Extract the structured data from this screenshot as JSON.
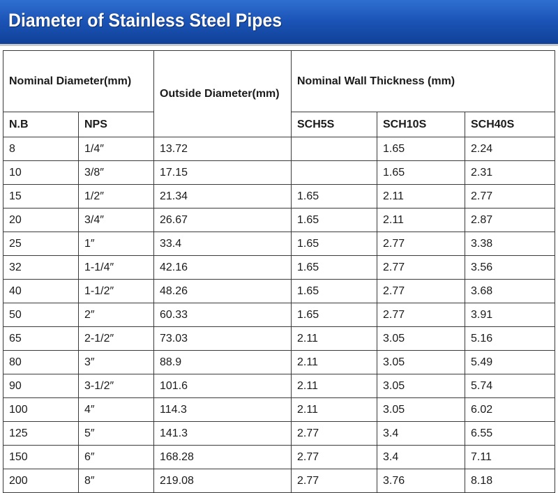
{
  "banner": {
    "title": "Diameter of Stainless Steel Pipes"
  },
  "table": {
    "header": {
      "nominal_diameter": "Nominal Diameter(mm)",
      "outside_diameter": "Outside Diameter(mm)",
      "wall_thickness": "Nominal Wall Thickness (mm)",
      "nb": "N.B",
      "nps": "NPS",
      "sch5s": "SCH5S",
      "sch10s": "SCH10S",
      "sch40s": "SCH40S"
    },
    "rows": [
      {
        "nb": "8",
        "nps": "1/4″",
        "od": "13.72",
        "sch5s": "",
        "sch10s": "1.65",
        "sch40s": "2.24"
      },
      {
        "nb": "10",
        "nps": "3/8″",
        "od": "17.15",
        "sch5s": "",
        "sch10s": "1.65",
        "sch40s": "2.31"
      },
      {
        "nb": "15",
        "nps": "1/2″",
        "od": "21.34",
        "sch5s": "1.65",
        "sch10s": "2.11",
        "sch40s": "2.77"
      },
      {
        "nb": "20",
        "nps": "3/4″",
        "od": "26.67",
        "sch5s": "1.65",
        "sch10s": "2.11",
        "sch40s": "2.87"
      },
      {
        "nb": "25",
        "nps": "1″",
        "od": "33.4",
        "sch5s": "1.65",
        "sch10s": "2.77",
        "sch40s": "3.38"
      },
      {
        "nb": "32",
        "nps": "1-1/4″",
        "od": "42.16",
        "sch5s": "1.65",
        "sch10s": "2.77",
        "sch40s": "3.56"
      },
      {
        "nb": "40",
        "nps": "1-1/2″",
        "od": "48.26",
        "sch5s": "1.65",
        "sch10s": "2.77",
        "sch40s": "3.68"
      },
      {
        "nb": "50",
        "nps": "2″",
        "od": "60.33",
        "sch5s": "1.65",
        "sch10s": "2.77",
        "sch40s": "3.91"
      },
      {
        "nb": "65",
        "nps": "2-1/2″",
        "od": "73.03",
        "sch5s": "2.11",
        "sch10s": "3.05",
        "sch40s": "5.16"
      },
      {
        "nb": "80",
        "nps": "3″",
        "od": "88.9",
        "sch5s": "2.11",
        "sch10s": "3.05",
        "sch40s": "5.49"
      },
      {
        "nb": "90",
        "nps": "3-1/2″",
        "od": "101.6",
        "sch5s": "2.11",
        "sch10s": "3.05",
        "sch40s": "5.74"
      },
      {
        "nb": "100",
        "nps": "4″",
        "od": "114.3",
        "sch5s": "2.11",
        "sch10s": "3.05",
        "sch40s": "6.02"
      },
      {
        "nb": "125",
        "nps": "5″",
        "od": "141.3",
        "sch5s": "2.77",
        "sch10s": "3.4",
        "sch40s": "6.55"
      },
      {
        "nb": "150",
        "nps": "6″",
        "od": "168.28",
        "sch5s": "2.77",
        "sch10s": "3.4",
        "sch40s": "7.11"
      },
      {
        "nb": "200",
        "nps": "8″",
        "od": "219.08",
        "sch5s": "2.77",
        "sch10s": "3.76",
        "sch40s": "8.18"
      }
    ]
  },
  "colors": {
    "banner_top": "#2f6fd0",
    "banner_bottom": "#0f3f96",
    "banner_text": "#ffffff",
    "grid": "#3a3a3a"
  }
}
